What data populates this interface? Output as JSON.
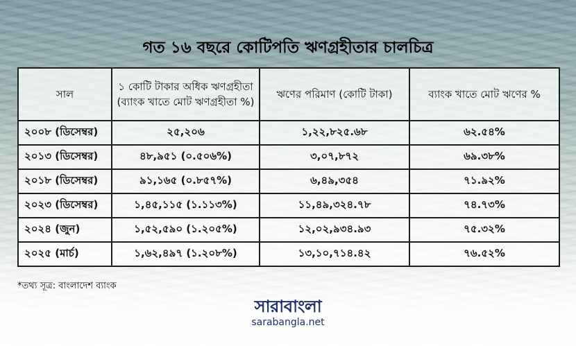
{
  "title": "গত ১৬ বছরে কোটিপতি ঋণগ্রহীতার চালচিত্র",
  "table": {
    "headers": [
      "সাল",
      "১ কোটি টাকার অধিক ঋণগ্রহীতা (ব্যাংক খাতে মোট ঋণগ্রহীতা %)",
      "ঋণের পরিমাণ (কোটি টাকা)",
      "ব্যাংক খাতে মোট ঋণের %"
    ],
    "rows": [
      {
        "year": "২০০৮ (ডিসেম্বর)",
        "borrowers": "২৫,২০৬",
        "amount": "১,২২,৮২৫.৬৮",
        "share": "৬২.৫৪%"
      },
      {
        "year": "২০১৩ (ডিসেম্বর)",
        "borrowers": "৪৮,৯৫১ (০.৫০৬%)",
        "amount": "৩,০৭,৮৭২",
        "share": "৬৯.৩৮%"
      },
      {
        "year": "২০১৮ (ডিসেম্বর)",
        "borrowers": "৯১,১৬৫ (০.৮৫৭%)",
        "amount": "৬,৪৯,৩৫৪",
        "share": "৭১.৯২%"
      },
      {
        "year": "২০২৩ (ডিসেম্বর)",
        "borrowers": "১,৪৫,১১৫ (১.১১৩%)",
        "amount": "১১,৪৯,৩২৪.৭৮",
        "share": "৭৪.৭৩%"
      },
      {
        "year": "২০২৪ (জুন)",
        "borrowers": "১,৫২,৫৯০ (১.২০৫%)",
        "amount": "১২,০২,৯৩৪.৯৩",
        "share": "৭৫.৩২%"
      },
      {
        "year": "২০২৫ (মার্চ)",
        "borrowers": "১,৬২,৪৯৭ (১.২০৮%)",
        "amount": "১৩,১০,৭১৪.৪২",
        "share": "৭৬.৫২%"
      }
    ]
  },
  "source": "*তথ্য সূত্র: বাংলাদেশ ব্যাংক",
  "logo": {
    "mark": "সারাবাংলা",
    "url": "sarabangla.net"
  },
  "colors": {
    "logo": "#1b2f6b",
    "border": "#1d1d1d"
  }
}
